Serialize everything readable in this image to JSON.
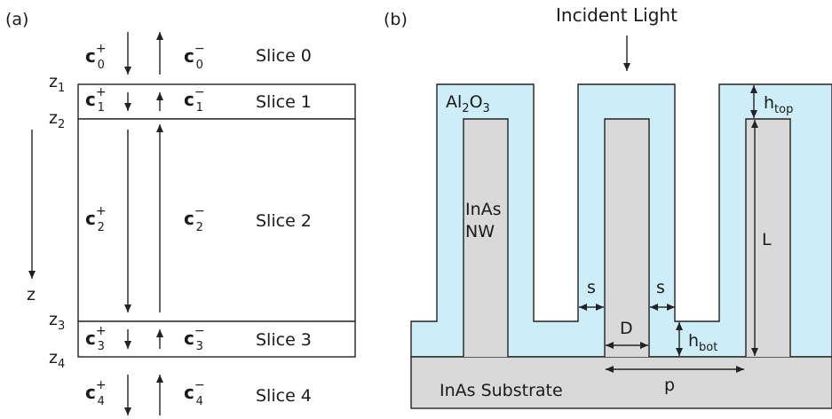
{
  "panel_a": {
    "label": "(a)",
    "slices": [
      "Slice 0",
      "Slice 1",
      "Slice 2",
      "Slice 3",
      "Slice 4"
    ],
    "coefficient_symbol": "c",
    "plus_sign": "+",
    "minus_sign": "−",
    "indices": [
      "0",
      "1",
      "2",
      "3",
      "4"
    ],
    "interfaces": [
      "1",
      "2",
      "3",
      "4"
    ],
    "z_symbol": "z",
    "z_axis_label": "z"
  },
  "panel_b": {
    "label": "(b)",
    "incident_light": "Incident Light",
    "shell_material_base": "Al",
    "shell_material_sub1": "2",
    "shell_material_mid": "O",
    "shell_material_sub2": "3",
    "nanowire_line1": "InAs",
    "nanowire_line2": "NW",
    "substrate": "InAs Substrate",
    "dim_s": "s",
    "dim_D": "D",
    "dim_L": "L",
    "dim_p": "p",
    "dim_h": "h",
    "sub_top": "top",
    "sub_bot": "bot"
  },
  "colors": {
    "shell": "#cdeef8",
    "nanowire": "#d9d9d9",
    "substrate": "#d9d9d9",
    "outline": "#222222"
  }
}
